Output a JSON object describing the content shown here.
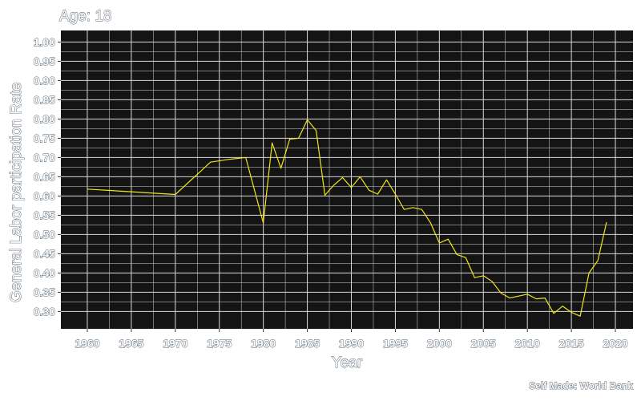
{
  "chart_data": {
    "type": "line",
    "title": "Age: 18",
    "xlabel": "Year",
    "ylabel": "General Labor participation Rate",
    "caption": "Self Made: World Bank",
    "xlim": [
      1957,
      2022
    ],
    "ylim": [
      0.255,
      1.03
    ],
    "x_ticks": [
      1960,
      1965,
      1970,
      1975,
      1980,
      1985,
      1990,
      1995,
      2000,
      2005,
      2010,
      2015,
      2020
    ],
    "y_ticks": [
      0.3,
      0.35,
      0.4,
      0.45,
      0.5,
      0.55,
      0.6,
      0.65,
      0.7,
      0.75,
      0.8,
      0.85,
      0.9,
      0.95,
      1.0
    ],
    "grid": true,
    "background": "#141414",
    "grid_color": "#d9d9d9",
    "line_color": "#f2e41a",
    "series": [
      {
        "x": [
          1960,
          1970,
          1974,
          1976,
          1978,
          1980,
          1981,
          1982,
          1983,
          1984,
          1985,
          1986,
          1987,
          1988,
          1989,
          1990,
          1991,
          1992,
          1993,
          1994,
          1995,
          1996,
          1997,
          1998,
          1999,
          2000,
          2001,
          2002,
          2003,
          2004,
          2005,
          2006,
          2007,
          2008,
          2009,
          2010,
          2011,
          2012,
          2013,
          2014,
          2015,
          2016,
          2017,
          2018,
          2019
        ],
        "y": [
          0.618,
          0.604,
          0.688,
          0.695,
          0.7,
          0.53,
          0.738,
          0.672,
          0.748,
          0.75,
          0.798,
          0.77,
          0.602,
          0.628,
          0.648,
          0.622,
          0.65,
          0.615,
          0.605,
          0.642,
          0.605,
          0.565,
          0.57,
          0.565,
          0.53,
          0.478,
          0.488,
          0.448,
          0.44,
          0.388,
          0.393,
          0.378,
          0.348,
          0.335,
          0.34,
          0.345,
          0.333,
          0.335,
          0.295,
          0.314,
          0.298,
          0.288,
          0.4,
          0.432,
          0.532
        ]
      }
    ]
  }
}
